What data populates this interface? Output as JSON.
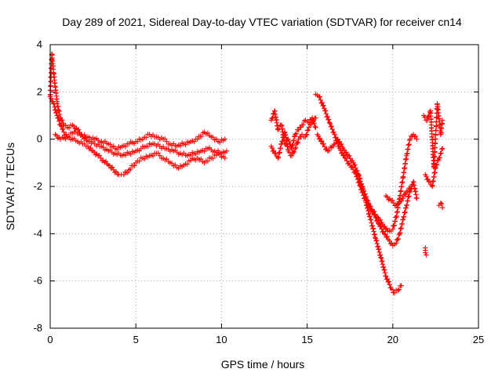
{
  "chart_data": {
    "type": "scatter",
    "title": "Day 289 of 2021, Sidereal Day-to-day VTEC variation (SDTVAR) for receiver cn14",
    "xlabel": "GPS time / hours",
    "ylabel": "SDTVAR / TECUs",
    "xlim": [
      0,
      25
    ],
    "ylim": [
      -8,
      4
    ],
    "xticks": [
      0,
      5,
      10,
      15,
      20,
      25
    ],
    "xtick_labels": [
      "0",
      "5",
      "10",
      "15",
      "20",
      "25"
    ],
    "yticks": [
      -8,
      -6,
      -4,
      -2,
      0,
      2,
      4
    ],
    "ytick_labels": [
      "-8",
      "-6",
      "-4",
      "-2",
      "0",
      "2",
      "4"
    ],
    "grid": true,
    "legend": "none",
    "marker": "+",
    "color": "#ff0000",
    "series": [
      {
        "x": [
          0.0,
          0.1,
          0.15,
          0.2,
          0.3,
          0.4,
          0.5,
          0.6,
          0.8,
          1.0,
          1.3,
          1.6,
          1.9,
          2.2,
          2.6,
          3.0,
          3.4,
          3.8,
          4.2,
          4.6,
          5.0,
          5.3,
          5.6,
          6.0,
          6.4,
          6.8,
          7.2,
          7.6,
          8.0,
          8.4,
          8.8,
          9.2,
          9.6,
          10.0,
          10.3
        ],
        "y": [
          1.8,
          3.6,
          3.2,
          2.8,
          2.2,
          1.6,
          1.2,
          0.9,
          0.6,
          0.5,
          0.6,
          0.4,
          0.1,
          -0.1,
          -0.2,
          -0.3,
          -0.5,
          -0.6,
          -0.7,
          -0.6,
          -0.5,
          -0.4,
          -0.3,
          -0.2,
          -0.3,
          -0.4,
          -0.5,
          -0.6,
          -0.7,
          -0.6,
          -0.5,
          -0.4,
          -0.5,
          -0.6,
          -0.5
        ]
      },
      {
        "x": [
          0.0,
          0.2,
          0.4,
          0.6,
          0.8,
          1.0,
          1.3,
          1.6,
          1.9,
          2.2,
          2.5,
          2.8,
          3.1,
          3.4,
          3.7,
          4.0,
          4.3,
          4.6,
          5.0,
          5.4,
          5.8,
          6.2,
          6.6,
          7.0,
          7.4,
          7.8,
          8.2,
          8.6,
          9.0,
          9.4,
          9.8,
          10.2
        ],
        "y": [
          1.8,
          1.5,
          1.0,
          0.6,
          0.3,
          0.1,
          0.0,
          -0.1,
          -0.2,
          -0.3,
          -0.5,
          -0.7,
          -0.9,
          -1.1,
          -1.3,
          -1.5,
          -1.5,
          -1.3,
          -1.0,
          -0.8,
          -0.7,
          -0.6,
          -0.8,
          -1.0,
          -1.2,
          -1.1,
          -0.9,
          -0.8,
          -1.0,
          -0.8,
          -0.6,
          -0.8
        ]
      },
      {
        "x": [
          0.3,
          0.6,
          1.0,
          1.4,
          1.8,
          2.2,
          2.6,
          3.0,
          3.4,
          3.8,
          4.2,
          4.6,
          5.0,
          5.4,
          5.8,
          6.2,
          6.6,
          7.0,
          7.4,
          7.8,
          8.2,
          8.6,
          9.0,
          9.4,
          9.8,
          10.2
        ],
        "y": [
          0.2,
          0.0,
          0.1,
          0.3,
          0.2,
          0.1,
          0.0,
          -0.1,
          -0.2,
          -0.4,
          -0.3,
          -0.2,
          -0.1,
          0.0,
          0.2,
          0.1,
          0.0,
          -0.2,
          -0.3,
          -0.2,
          -0.1,
          0.0,
          0.3,
          0.1,
          -0.1,
          0.0
        ]
      },
      {
        "x": [
          12.9,
          13.1,
          13.3,
          13.5,
          13.7,
          13.9,
          14.1,
          14.3,
          14.5,
          14.7,
          14.9,
          15.1,
          15.3,
          15.5
        ],
        "y": [
          0.8,
          1.2,
          0.4,
          0.6,
          -0.2,
          0.0,
          -0.4,
          0.2,
          0.4,
          0.6,
          0.8,
          0.7,
          0.9,
          0.5
        ]
      },
      {
        "x": [
          12.9,
          13.1,
          13.3,
          13.5,
          13.7,
          13.9,
          14.1,
          14.3,
          14.5,
          14.7,
          14.9,
          15.1,
          15.3,
          15.5
        ],
        "y": [
          -0.3,
          -0.6,
          -0.8,
          -0.2,
          0.3,
          -0.5,
          -0.7,
          -0.4,
          0.0,
          0.2,
          0.1,
          0.5,
          0.7,
          0.9
        ]
      },
      {
        "x": [
          15.5,
          15.7,
          16.0,
          16.3,
          16.6,
          16.9,
          17.2,
          17.5,
          17.8,
          18.1,
          18.4,
          18.7,
          19.0,
          19.3,
          19.6,
          19.9,
          20.1,
          20.3,
          20.5
        ],
        "y": [
          1.9,
          1.8,
          1.3,
          0.7,
          0.2,
          -0.4,
          -0.8,
          -1.1,
          -1.4,
          -2.0,
          -2.6,
          -3.4,
          -4.2,
          -5.0,
          -5.8,
          -6.3,
          -6.5,
          -6.4,
          -6.2
        ]
      },
      {
        "x": [
          15.6,
          15.9,
          16.2,
          16.5,
          16.8,
          17.1,
          17.4,
          17.7,
          18.0,
          18.3,
          18.6,
          18.9,
          19.2,
          19.5,
          19.8,
          20.0,
          20.2,
          20.4,
          20.6,
          20.8,
          21.0,
          21.2,
          21.4
        ],
        "y": [
          0.2,
          -0.2,
          -0.5,
          -0.3,
          0.0,
          -0.4,
          -0.7,
          -1.0,
          -1.5,
          -2.2,
          -2.8,
          -3.2,
          -3.6,
          -4.0,
          -4.3,
          -4.5,
          -4.4,
          -4.0,
          -3.4,
          -2.8,
          -2.2,
          -1.8,
          -2.5
        ]
      },
      {
        "x": [
          18.2,
          18.5,
          18.8,
          19.1,
          19.4,
          19.7,
          20.0,
          20.2,
          20.4,
          20.6,
          20.8,
          21.0,
          21.2,
          21.4
        ],
        "y": [
          -2.0,
          -2.6,
          -3.0,
          -3.3,
          -3.6,
          -3.9,
          -3.8,
          -3.3,
          -2.5,
          -1.6,
          -0.7,
          0.0,
          0.2,
          0.0
        ]
      },
      {
        "x": [
          19.6,
          19.9,
          20.2,
          20.5,
          20.8,
          21.1
        ],
        "y": [
          -2.4,
          -2.6,
          -2.8,
          -2.6,
          -2.2,
          -2.0
        ]
      },
      {
        "x": [
          21.8,
          22.0,
          22.2,
          22.4,
          22.6,
          22.8,
          22.9
        ],
        "y": [
          1.0,
          0.8,
          1.2,
          -1.2,
          1.5,
          0.2,
          0.8
        ]
      },
      {
        "x": [
          21.9,
          22.1,
          22.3,
          22.5,
          22.7,
          22.9
        ],
        "y": [
          -1.5,
          -1.8,
          -2.0,
          -1.2,
          -0.8,
          -0.4
        ]
      },
      {
        "x": [
          22.7,
          22.8,
          22.9
        ],
        "y": [
          -2.8,
          -2.7,
          -2.9
        ]
      },
      {
        "x": [
          21.9,
          21.9,
          21.95
        ],
        "y": [
          -4.6,
          -4.8,
          -4.9
        ]
      }
    ]
  }
}
